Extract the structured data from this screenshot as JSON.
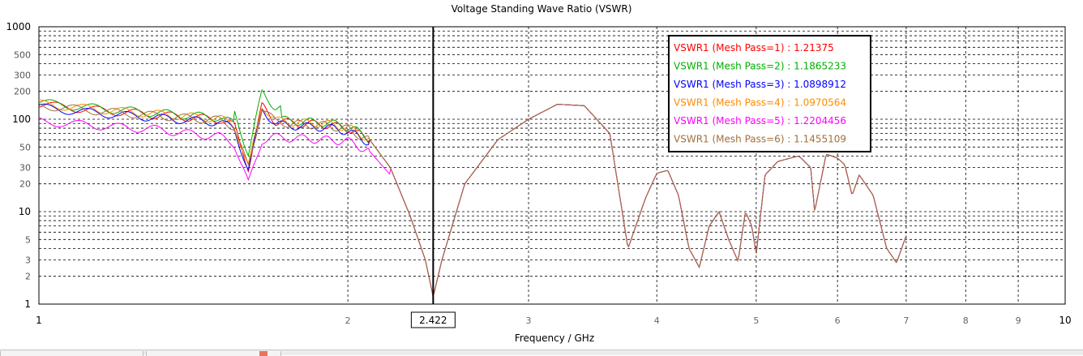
{
  "chart_data": {
    "type": "line",
    "title": "Voltage Standing Wave Ratio (VSWR)",
    "xlabel": "Frequency / GHz",
    "ylabel": "",
    "x_scale": "log",
    "y_scale": "log",
    "xlim": [
      1,
      10
    ],
    "ylim": [
      1,
      1000
    ],
    "x_tick_labels": [
      "1",
      "2",
      "3",
      "4",
      "5",
      "6",
      "7",
      "8",
      "9",
      "10"
    ],
    "y_tick_labels": [
      "1",
      "2",
      "3",
      "5",
      "10",
      "20",
      "30",
      "50",
      "100",
      "200",
      "300",
      "500",
      "1000"
    ],
    "grid": true,
    "marker": {
      "x": 2.422,
      "label": "2.422"
    },
    "legend_position": "top-right",
    "series": [
      {
        "name": "VSWR1 (Mesh Pass=1)",
        "value_label": "1.21375",
        "color": "#ff0000"
      },
      {
        "name": "VSWR1 (Mesh Pass=2)",
        "value_label": "1.1865233",
        "color": "#00b000"
      },
      {
        "name": "VSWR1 (Mesh Pass=3)",
        "value_label": "1.0898912",
        "color": "#0000ff"
      },
      {
        "name": "VSWR1 (Mesh Pass=4)",
        "value_label": "1.0970564",
        "color": "#ff8c00"
      },
      {
        "name": "VSWR1 (Mesh Pass=5)",
        "value_label": "1.2204456",
        "color": "#ff00ff"
      },
      {
        "name": "VSWR1 (Mesh Pass=6)",
        "value_label": "1.1455109",
        "color": "#a0703a"
      }
    ],
    "curve_anchors": {
      "x": [
        1.0,
        1.1,
        1.2,
        1.3,
        1.4,
        1.5,
        1.55,
        1.6,
        1.65,
        1.7,
        1.8,
        1.9,
        2.0,
        2.1,
        2.2,
        2.3,
        2.38,
        2.422,
        2.47,
        2.6,
        2.8,
        3.0,
        3.2,
        3.4,
        3.6,
        3.75,
        3.9,
        4.0,
        4.1,
        4.2,
        4.3,
        4.4,
        4.5,
        4.6,
        4.7,
        4.8,
        4.88,
        4.95,
        5.0,
        5.1,
        5.25,
        5.5,
        5.65,
        5.7,
        5.85,
        6.0,
        6.1,
        6.2,
        6.3,
        6.5,
        6.7,
        6.85,
        7.0
      ],
      "base_y": [
        145,
        130,
        120,
        112,
        105,
        100,
        85,
        30,
        140,
        95,
        90,
        88,
        80,
        60,
        30,
        9,
        3,
        1.2,
        3,
        20,
        60,
        100,
        145,
        140,
        70,
        4,
        14,
        26,
        28,
        15,
        4,
        2.5,
        7,
        10,
        5,
        2.9,
        10,
        7,
        3.5,
        25,
        35,
        40,
        30,
        10,
        42,
        38,
        32,
        15,
        25,
        15,
        4,
        2.8,
        5.5
      ],
      "low_y": [
        95,
        88,
        82,
        78,
        70,
        65,
        55,
        20,
        60,
        64,
        62,
        60,
        58,
        45,
        25
      ]
    }
  }
}
